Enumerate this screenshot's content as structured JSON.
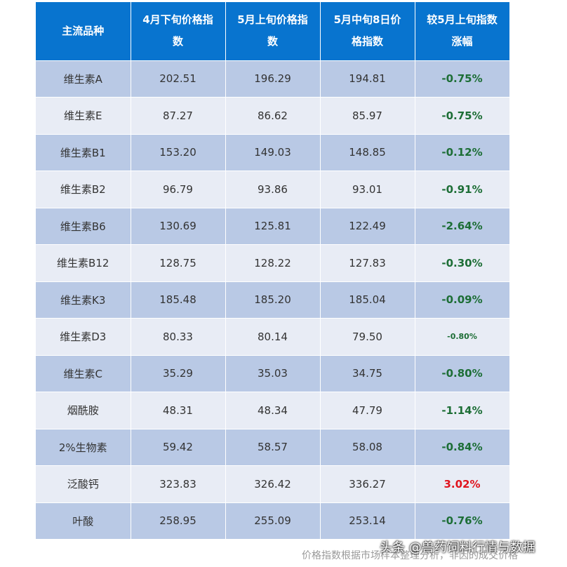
{
  "table": {
    "header": [
      "主流品种",
      "4月下旬价格指数",
      "5月上旬价格指数",
      "5月中旬8日价格指数",
      "较5月上旬指数涨幅"
    ],
    "rows": [
      [
        "维生素A",
        "202.51",
        "196.29",
        "194.81",
        "-0.75%"
      ],
      [
        "维生素E",
        "87.27",
        "86.62",
        "85.97",
        "-0.75%"
      ],
      [
        "维生素B1",
        "153.20",
        "149.03",
        "148.85",
        "-0.12%"
      ],
      [
        "维生素B2",
        "96.79",
        "93.86",
        "93.01",
        "-0.91%"
      ],
      [
        "维生素B6",
        "130.69",
        "125.81",
        "122.49",
        "-2.64%"
      ],
      [
        "维生素B12",
        "128.75",
        "128.22",
        "127.83",
        "-0.30%"
      ],
      [
        "维生素K3",
        "185.48",
        "185.20",
        "185.04",
        "-0.09%"
      ],
      [
        "维生素D3",
        "80.33",
        "80.14",
        "79.50",
        "-0.80%"
      ],
      [
        "维生素C",
        "35.29",
        "35.03",
        "34.75",
        "-0.80%"
      ],
      [
        "烟酰胺",
        "48.31",
        "48.34",
        "47.79",
        "-1.14%"
      ],
      [
        "2%生物素",
        "59.42",
        "58.57",
        "58.08",
        "-0.84%"
      ],
      [
        "泛酸钙",
        "323.83",
        "326.42",
        "336.27",
        "3.02%"
      ],
      [
        "叶酸",
        "258.95",
        "255.09",
        "253.14",
        "-0.76%"
      ]
    ]
  },
  "footer": "价格指数根据市场样本整理分析，非因的成交价格",
  "watermark": "头条 @兽药饲料行情与数据"
}
